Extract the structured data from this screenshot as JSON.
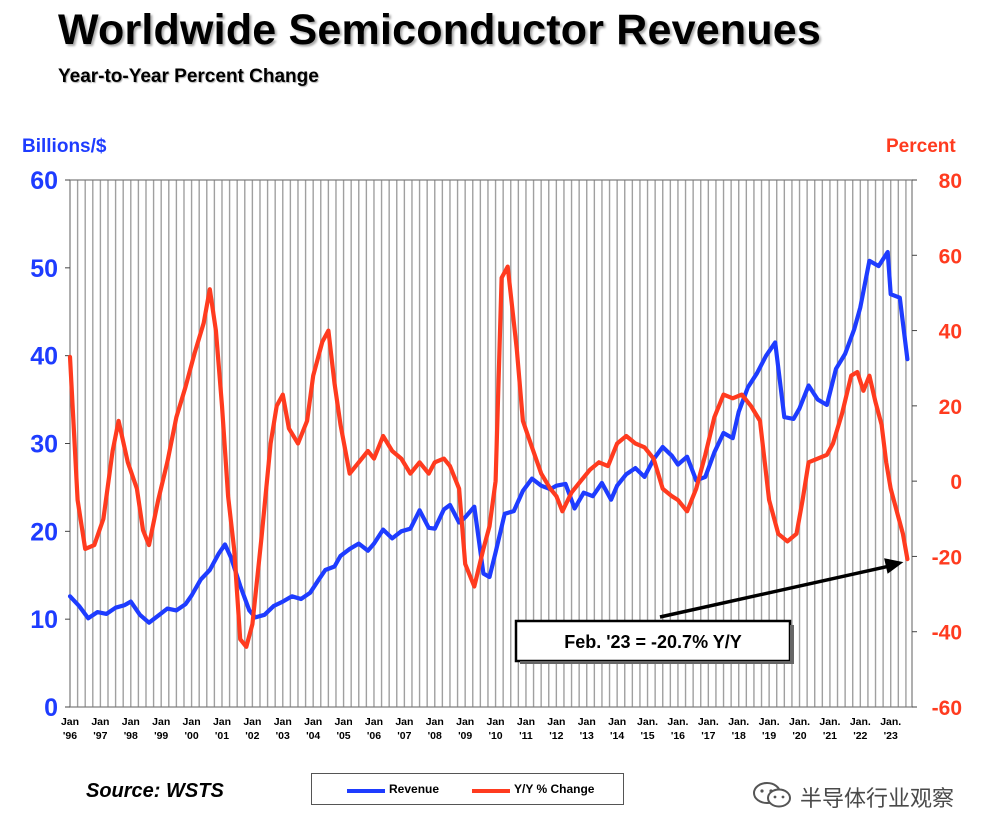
{
  "title": "Worldwide Semiconductor Revenues",
  "subtitle": "Year-to-Year Percent Change",
  "source": "Source: WSTS",
  "watermark": "半导体行业观察",
  "colors": {
    "revenue": "#1e3cff",
    "change": "#ff3b1f",
    "grid": "#a0a0a0",
    "arrow": "#000000"
  },
  "chart_data": {
    "type": "line",
    "x_categories": [
      "Jan '96",
      "Jan '97",
      "Jan '98",
      "Jan '99",
      "Jan '00",
      "Jan '01",
      "Jan '02",
      "Jan '03",
      "Jan '04",
      "Jan '05",
      "Jan '06",
      "Jan '07",
      "Jan '08",
      "Jan '09",
      "Jan '10",
      "Jan '11",
      "Jan '12",
      "Jan '13",
      "Jan '14",
      "Jan. '15",
      "Jan. '16",
      "Jan. '17",
      "Jan. '18",
      "Jan. '19",
      "Jan. '20",
      "Jan. '21",
      "Jan. '22",
      "Jan. '23"
    ],
    "x_tick_labels": [
      {
        "top": "Jan",
        "bottom": "'96"
      },
      {
        "top": "Jan",
        "bottom": "'97"
      },
      {
        "top": "Jan",
        "bottom": "'98"
      },
      {
        "top": "Jan",
        "bottom": "'99"
      },
      {
        "top": "Jan",
        "bottom": "'00"
      },
      {
        "top": "Jan",
        "bottom": "'01"
      },
      {
        "top": "Jan",
        "bottom": "'02"
      },
      {
        "top": "Jan",
        "bottom": "'03"
      },
      {
        "top": "Jan",
        "bottom": "'04"
      },
      {
        "top": "Jan",
        "bottom": "'05"
      },
      {
        "top": "Jan",
        "bottom": "'06"
      },
      {
        "top": "Jan",
        "bottom": "'07"
      },
      {
        "top": "Jan",
        "bottom": "'08"
      },
      {
        "top": "Jan",
        "bottom": "'09"
      },
      {
        "top": "Jan",
        "bottom": "'10"
      },
      {
        "top": "Jan",
        "bottom": "'11"
      },
      {
        "top": "Jan",
        "bottom": "'12"
      },
      {
        "top": "Jan",
        "bottom": "'13"
      },
      {
        "top": "Jan",
        "bottom": "'14"
      },
      {
        "top": "Jan.",
        "bottom": "'15"
      },
      {
        "top": "Jan.",
        "bottom": "'16"
      },
      {
        "top": "Jan.",
        "bottom": "'17"
      },
      {
        "top": "Jan.",
        "bottom": "'18"
      },
      {
        "top": "Jan.",
        "bottom": "'19"
      },
      {
        "top": "Jan.",
        "bottom": "'20"
      },
      {
        "top": "Jan.",
        "bottom": "'21"
      },
      {
        "top": "Jan.",
        "bottom": "'22"
      },
      {
        "top": "Jan.",
        "bottom": "'23"
      }
    ],
    "y_left": {
      "label": "Billions/$",
      "ylim": [
        0,
        60
      ],
      "ticks": [
        "0",
        "10",
        "20",
        "30",
        "40",
        "50",
        "60"
      ]
    },
    "y_right": {
      "label": "Percent",
      "ylim": [
        -60,
        80
      ],
      "ticks": [
        "-60",
        "-40",
        "-20",
        "0",
        "20",
        "40",
        "60",
        "80"
      ]
    },
    "grid": true,
    "legend_placement": "bottom-center",
    "series": [
      {
        "name": "Revenue",
        "axis": "left",
        "points": [
          [
            1996.0,
            12.6
          ],
          [
            1996.3,
            11.5
          ],
          [
            1996.6,
            10.1
          ],
          [
            1996.9,
            10.8
          ],
          [
            1997.2,
            10.6
          ],
          [
            1997.5,
            11.3
          ],
          [
            1997.8,
            11.6
          ],
          [
            1998.0,
            12.0
          ],
          [
            1998.3,
            10.5
          ],
          [
            1998.6,
            9.6
          ],
          [
            1998.9,
            10.4
          ],
          [
            1999.2,
            11.2
          ],
          [
            1999.5,
            11.0
          ],
          [
            1999.8,
            11.7
          ],
          [
            2000.0,
            12.7
          ],
          [
            2000.3,
            14.5
          ],
          [
            2000.6,
            15.6
          ],
          [
            2000.9,
            17.5
          ],
          [
            2001.1,
            18.5
          ],
          [
            2001.3,
            17.0
          ],
          [
            2001.6,
            13.8
          ],
          [
            2001.9,
            11.0
          ],
          [
            2002.1,
            10.2
          ],
          [
            2002.4,
            10.5
          ],
          [
            2002.7,
            11.5
          ],
          [
            2003.0,
            12.0
          ],
          [
            2003.3,
            12.6
          ],
          [
            2003.6,
            12.3
          ],
          [
            2003.9,
            13.0
          ],
          [
            2004.2,
            14.6
          ],
          [
            2004.4,
            15.6
          ],
          [
            2004.7,
            16.0
          ],
          [
            2004.9,
            17.2
          ],
          [
            2005.2,
            18.0
          ],
          [
            2005.5,
            18.6
          ],
          [
            2005.8,
            17.8
          ],
          [
            2006.0,
            18.6
          ],
          [
            2006.3,
            20.2
          ],
          [
            2006.6,
            19.2
          ],
          [
            2006.9,
            20.0
          ],
          [
            2007.2,
            20.3
          ],
          [
            2007.5,
            22.4
          ],
          [
            2007.8,
            20.4
          ],
          [
            2008.0,
            20.3
          ],
          [
            2008.3,
            22.5
          ],
          [
            2008.5,
            23.0
          ],
          [
            2008.8,
            21.0
          ],
          [
            2009.0,
            21.6
          ],
          [
            2009.3,
            22.8
          ],
          [
            2009.6,
            15.2
          ],
          [
            2009.8,
            14.8
          ],
          [
            2010.0,
            17.6
          ],
          [
            2010.3,
            22.0
          ],
          [
            2010.6,
            22.3
          ],
          [
            2010.9,
            24.6
          ],
          [
            2011.2,
            26.0
          ],
          [
            2011.5,
            25.2
          ],
          [
            2011.8,
            24.8
          ],
          [
            2012.0,
            25.2
          ],
          [
            2012.3,
            25.4
          ],
          [
            2012.6,
            22.6
          ],
          [
            2012.9,
            24.4
          ],
          [
            2013.2,
            24.0
          ],
          [
            2013.5,
            25.5
          ],
          [
            2013.8,
            23.6
          ],
          [
            2014.0,
            25.2
          ],
          [
            2014.3,
            26.5
          ],
          [
            2014.6,
            27.2
          ],
          [
            2014.9,
            26.2
          ],
          [
            2015.2,
            28.2
          ],
          [
            2015.5,
            29.6
          ],
          [
            2015.8,
            28.6
          ],
          [
            2016.0,
            27.6
          ],
          [
            2016.3,
            28.5
          ],
          [
            2016.6,
            25.8
          ],
          [
            2016.9,
            26.2
          ],
          [
            2017.2,
            29.0
          ],
          [
            2017.5,
            31.2
          ],
          [
            2017.8,
            30.6
          ],
          [
            2018.0,
            33.6
          ],
          [
            2018.3,
            36.4
          ],
          [
            2018.6,
            38.0
          ],
          [
            2018.9,
            40.0
          ],
          [
            2019.2,
            41.5
          ],
          [
            2019.5,
            33.0
          ],
          [
            2019.8,
            32.8
          ],
          [
            2020.0,
            34.0
          ],
          [
            2020.3,
            36.6
          ],
          [
            2020.6,
            35.0
          ],
          [
            2020.9,
            34.4
          ],
          [
            2021.2,
            38.5
          ],
          [
            2021.5,
            40.2
          ],
          [
            2021.8,
            43.0
          ],
          [
            2022.0,
            45.5
          ],
          [
            2022.3,
            50.8
          ],
          [
            2022.6,
            50.2
          ],
          [
            2022.9,
            51.8
          ],
          [
            2023.0,
            47.0
          ],
          [
            2023.3,
            46.6
          ],
          [
            2023.55,
            39.6
          ]
        ]
      },
      {
        "name": "Y/Y % Change",
        "axis": "right",
        "points": [
          [
            1996.0,
            33.0
          ],
          [
            1996.25,
            -5.0
          ],
          [
            1996.5,
            -18.0
          ],
          [
            1996.8,
            -17.0
          ],
          [
            1997.1,
            -10.0
          ],
          [
            1997.4,
            8.0
          ],
          [
            1997.6,
            16.0
          ],
          [
            1997.9,
            5.0
          ],
          [
            1998.2,
            -2.0
          ],
          [
            1998.4,
            -13.0
          ],
          [
            1998.6,
            -17.0
          ],
          [
            1998.9,
            -5.0
          ],
          [
            1999.2,
            5.0
          ],
          [
            1999.5,
            17.0
          ],
          [
            1999.8,
            25.0
          ],
          [
            2000.1,
            34.0
          ],
          [
            2000.4,
            42.0
          ],
          [
            2000.6,
            51.0
          ],
          [
            2000.8,
            40.0
          ],
          [
            2001.0,
            20.0
          ],
          [
            2001.2,
            -4.0
          ],
          [
            2001.4,
            -18.0
          ],
          [
            2001.6,
            -42.0
          ],
          [
            2001.8,
            -44.0
          ],
          [
            2002.0,
            -38.0
          ],
          [
            2002.3,
            -15.0
          ],
          [
            2002.6,
            10.0
          ],
          [
            2002.8,
            20.0
          ],
          [
            2003.0,
            23.0
          ],
          [
            2003.2,
            14.0
          ],
          [
            2003.5,
            10.0
          ],
          [
            2003.8,
            16.0
          ],
          [
            2004.0,
            28.0
          ],
          [
            2004.3,
            37.0
          ],
          [
            2004.5,
            40.0
          ],
          [
            2004.7,
            26.0
          ],
          [
            2004.9,
            15.0
          ],
          [
            2005.2,
            2.0
          ],
          [
            2005.5,
            5.0
          ],
          [
            2005.8,
            8.0
          ],
          [
            2006.0,
            6.0
          ],
          [
            2006.3,
            12.0
          ],
          [
            2006.6,
            8.0
          ],
          [
            2006.9,
            6.0
          ],
          [
            2007.2,
            2.0
          ],
          [
            2007.5,
            5.0
          ],
          [
            2007.8,
            2.0
          ],
          [
            2008.0,
            5.0
          ],
          [
            2008.3,
            6.0
          ],
          [
            2008.5,
            4.0
          ],
          [
            2008.8,
            -2.0
          ],
          [
            2009.0,
            -22.0
          ],
          [
            2009.3,
            -28.0
          ],
          [
            2009.6,
            -18.0
          ],
          [
            2009.8,
            -12.0
          ],
          [
            2010.0,
            0.0
          ],
          [
            2010.2,
            54.0
          ],
          [
            2010.4,
            57.0
          ],
          [
            2010.7,
            35.0
          ],
          [
            2010.9,
            16.0
          ],
          [
            2011.2,
            9.0
          ],
          [
            2011.5,
            2.0
          ],
          [
            2011.8,
            -2.0
          ],
          [
            2012.0,
            -4.0
          ],
          [
            2012.2,
            -8.0
          ],
          [
            2012.5,
            -3.0
          ],
          [
            2012.8,
            0.0
          ],
          [
            2013.1,
            3.0
          ],
          [
            2013.4,
            5.0
          ],
          [
            2013.7,
            4.0
          ],
          [
            2014.0,
            10.0
          ],
          [
            2014.3,
            12.0
          ],
          [
            2014.6,
            10.0
          ],
          [
            2014.9,
            9.0
          ],
          [
            2015.2,
            6.0
          ],
          [
            2015.5,
            -2.0
          ],
          [
            2015.8,
            -4.0
          ],
          [
            2016.0,
            -5.0
          ],
          [
            2016.3,
            -8.0
          ],
          [
            2016.6,
            -2.0
          ],
          [
            2016.9,
            7.0
          ],
          [
            2017.2,
            17.0
          ],
          [
            2017.5,
            23.0
          ],
          [
            2017.8,
            22.0
          ],
          [
            2018.1,
            23.0
          ],
          [
            2018.4,
            20.0
          ],
          [
            2018.7,
            16.0
          ],
          [
            2019.0,
            -5.0
          ],
          [
            2019.3,
            -14.0
          ],
          [
            2019.6,
            -16.0
          ],
          [
            2019.9,
            -14.0
          ],
          [
            2020.1,
            -5.0
          ],
          [
            2020.3,
            5.0
          ],
          [
            2020.6,
            6.0
          ],
          [
            2020.9,
            7.0
          ],
          [
            2021.1,
            10.0
          ],
          [
            2021.4,
            18.0
          ],
          [
            2021.7,
            28.0
          ],
          [
            2021.9,
            29.0
          ],
          [
            2022.1,
            24.0
          ],
          [
            2022.3,
            28.0
          ],
          [
            2022.5,
            21.0
          ],
          [
            2022.7,
            15.0
          ],
          [
            2022.85,
            5.0
          ],
          [
            2023.0,
            -2.0
          ],
          [
            2023.2,
            -8.0
          ],
          [
            2023.4,
            -14.0
          ],
          [
            2023.55,
            -20.7
          ]
        ]
      }
    ],
    "annotation": {
      "text": "Feb. '23 = -20.7% Y/Y",
      "points_to": {
        "x": 2023.55,
        "y": -20.7,
        "axis": "right"
      }
    },
    "legend": [
      "Revenue",
      "Y/Y % Change"
    ]
  }
}
